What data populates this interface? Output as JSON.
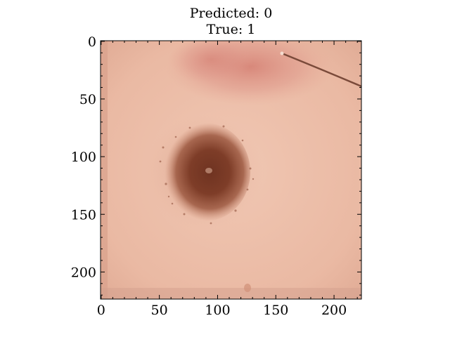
{
  "title": {
    "line1": "Predicted: 0",
    "line2": "True: 1"
  },
  "axes": {
    "x": {
      "range": [
        0,
        224
      ],
      "ticks": [
        "0",
        "50",
        "100",
        "150",
        "200"
      ],
      "tick_values": [
        0,
        50,
        100,
        150,
        200
      ]
    },
    "y": {
      "range": [
        0,
        224
      ],
      "ticks": [
        "0",
        "50",
        "100",
        "150",
        "200"
      ],
      "tick_values": [
        0,
        50,
        100,
        150,
        200
      ],
      "inverted": true
    }
  },
  "image": {
    "subject": "skin-lesion-dermoscopy",
    "colors": {
      "skin": "#e9b9a2",
      "lesion_center": "#7a3b25",
      "lesion_edge": "#a8604a",
      "redness": "#d98a7e",
      "hair": "#7a4a3a"
    }
  }
}
